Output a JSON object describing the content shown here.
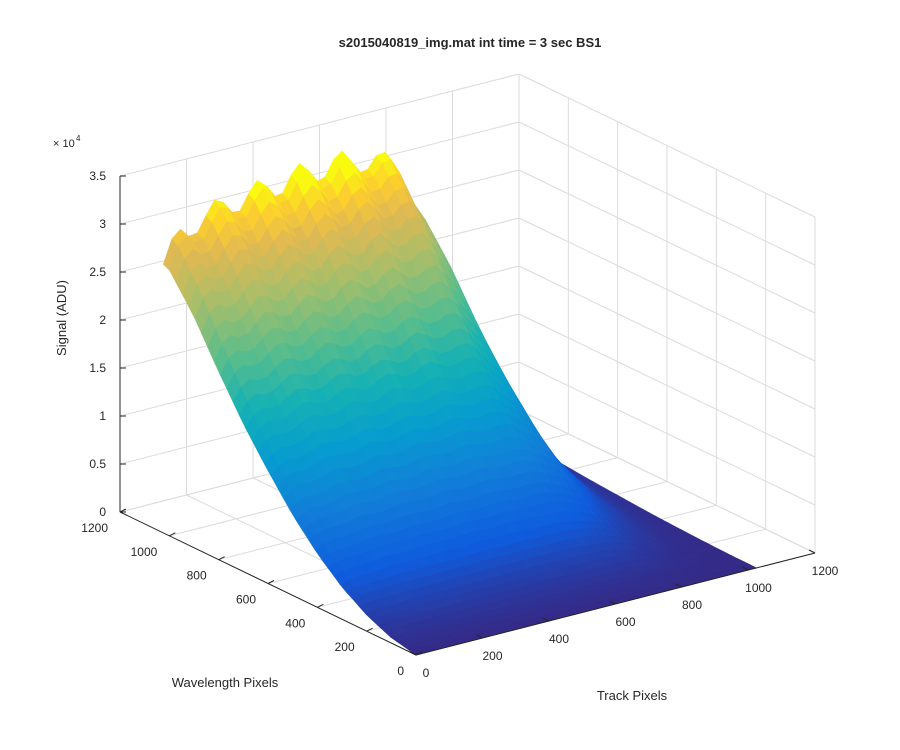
{
  "chart_data": {
    "type": "surface3d",
    "title": "s2015040819_img.mat int time = 3 sec   BS1",
    "xlabel": "Track Pixels",
    "ylabel": "Wavelength Pixels",
    "zlabel": "Signal (ADU)",
    "z_multiplier_label": "× 10",
    "z_multiplier_exponent": "4",
    "xlim": [
      0,
      1200
    ],
    "ylim": [
      0,
      1200
    ],
    "zlim": [
      0,
      35000
    ],
    "x_ticks": [
      "0",
      "200",
      "400",
      "600",
      "800",
      "1000",
      "1200"
    ],
    "y_ticks": [
      "0",
      "200",
      "400",
      "600",
      "800",
      "1000",
      "1200"
    ],
    "z_ticks": [
      "0",
      "0.5",
      "1",
      "1.5",
      "2",
      "2.5",
      "3",
      "3.5"
    ],
    "grid": true,
    "colormap": "parula",
    "surface_extent": {
      "x": [
        0,
        1024
      ],
      "y": [
        0,
        1024
      ]
    },
    "signal_profile": {
      "description_values_are_signal_at_max_wavelength_pixel_along_track": true,
      "track": [
        0,
        50,
        100,
        200,
        300,
        400,
        500,
        600,
        700,
        750,
        800,
        850,
        900,
        950,
        1000,
        1024
      ],
      "peak_signal": [
        28000,
        30500,
        31500,
        32500,
        33000,
        33500,
        33800,
        33500,
        32000,
        28000,
        22000,
        15000,
        9000,
        4500,
        2000,
        1500
      ]
    },
    "wavelength_profile": {
      "wavelength": [
        0,
        100,
        200,
        300,
        400,
        500,
        600,
        700,
        800,
        900,
        1000,
        1024
      ],
      "relative_signal": [
        0.0,
        0.02,
        0.06,
        0.12,
        0.2,
        0.3,
        0.42,
        0.55,
        0.7,
        0.86,
        0.99,
        1.0
      ]
    }
  },
  "colors": {
    "axis": "#262626",
    "grid": "#dbdbdb",
    "background": "#ffffff"
  }
}
